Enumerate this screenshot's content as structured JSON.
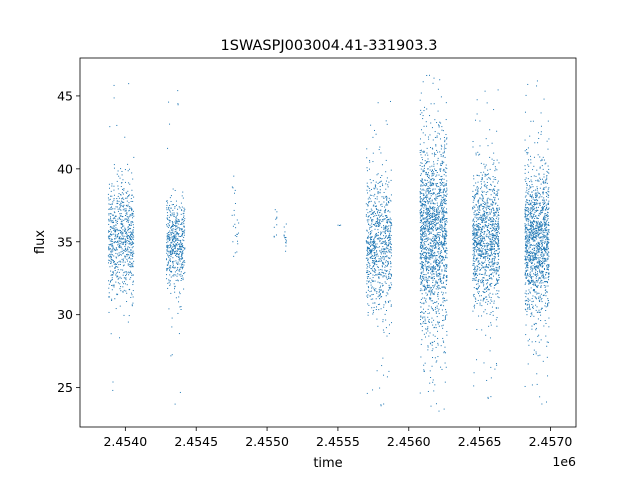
{
  "chart_data": {
    "type": "scatter",
    "title": "1SWASPJ003004.41-331903.3",
    "xlabel": "time",
    "ylabel": "flux",
    "x_offset_label": "1e6",
    "xlim": [
      2.45368,
      2.45718
    ],
    "ylim": [
      22.3,
      47.6
    ],
    "x_ticks": [
      2.454,
      2.4545,
      2.455,
      2.4555,
      2.456,
      2.4565,
      2.457
    ],
    "x_tick_labels": [
      "2.4540",
      "2.4545",
      "2.4550",
      "2.4555",
      "2.4560",
      "2.4565",
      "2.4570"
    ],
    "y_ticks": [
      25,
      30,
      35,
      40,
      45
    ],
    "y_tick_labels": [
      "25",
      "30",
      "35",
      "40",
      "45"
    ],
    "grid": false,
    "marker_color": "#1f77b4",
    "clusters": [
      {
        "x_range": [
          2.45388,
          2.45406
        ],
        "center": 35.2,
        "spread": 2.0,
        "n": 700,
        "outlier_range": [
          24.0,
          46.4
        ]
      },
      {
        "x_range": [
          2.45429,
          2.45442
        ],
        "center": 34.8,
        "spread": 1.5,
        "n": 500,
        "outlier_range": [
          23.8,
          46.5
        ]
      },
      {
        "x_range": [
          2.45475,
          2.4548
        ],
        "center": 36.5,
        "spread": 1.5,
        "n": 25,
        "outlier_range": [
          34.0,
          39.5
        ]
      },
      {
        "x_range": [
          2.45505,
          2.45507
        ],
        "center": 36.0,
        "spread": 0.6,
        "n": 10,
        "outlier_range": [
          35.0,
          37.2
        ]
      },
      {
        "x_range": [
          2.45512,
          2.45514
        ],
        "center": 35.3,
        "spread": 0.8,
        "n": 15,
        "outlier_range": [
          34.0,
          36.8
        ]
      },
      {
        "x_range": [
          2.4555,
          2.45552
        ],
        "center": 36.4,
        "spread": 0.3,
        "n": 3,
        "outlier_range": [
          36.0,
          36.6
        ]
      },
      {
        "x_range": [
          2.4557,
          2.45588
        ],
        "center": 34.8,
        "spread": 2.3,
        "n": 800,
        "outlier_range": [
          23.5,
          45.2
        ]
      },
      {
        "x_range": [
          2.45608,
          2.45627
        ],
        "center": 35.5,
        "spread": 3.3,
        "n": 1600,
        "outlier_range": [
          23.0,
          46.5
        ]
      },
      {
        "x_range": [
          2.45645,
          2.45664
        ],
        "center": 35.3,
        "spread": 2.3,
        "n": 1100,
        "outlier_range": [
          24.0,
          46.0
        ]
      },
      {
        "x_range": [
          2.45682,
          2.45699
        ],
        "center": 35.0,
        "spread": 2.5,
        "n": 1300,
        "outlier_range": [
          23.5,
          46.3
        ]
      }
    ]
  }
}
